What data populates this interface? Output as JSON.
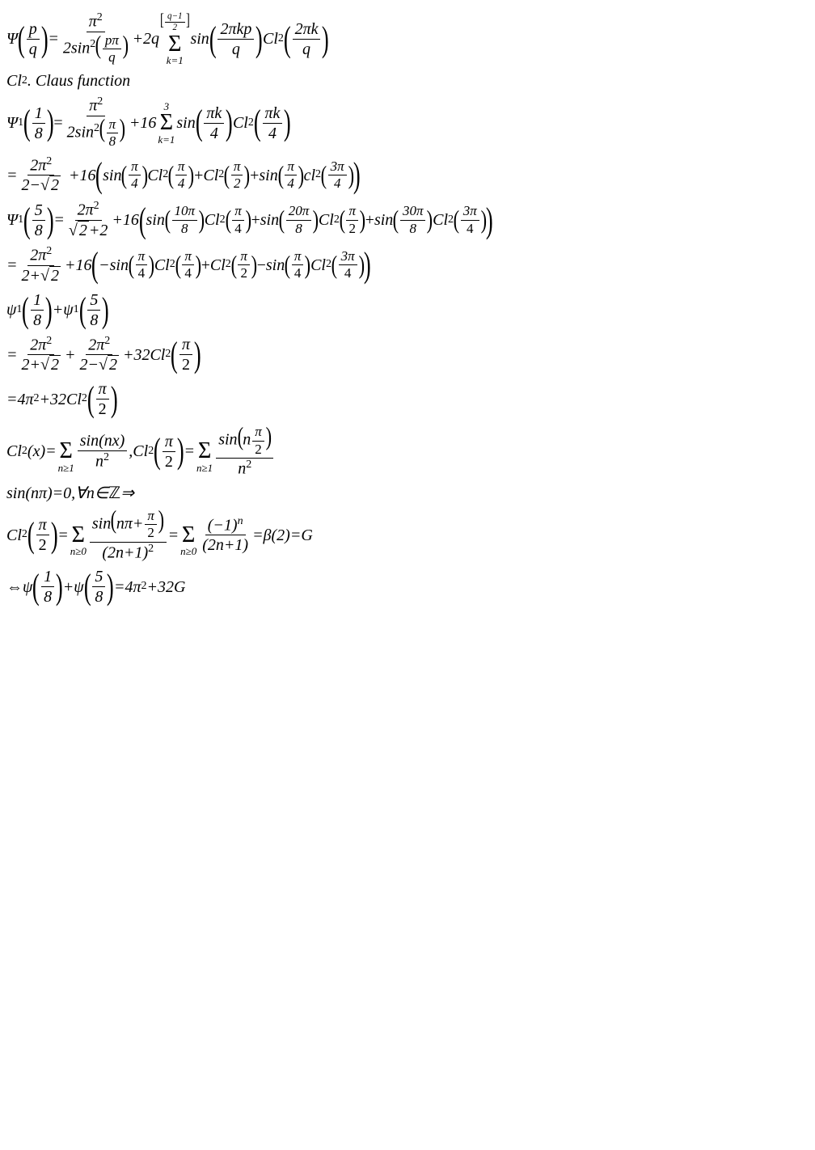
{
  "lines": {
    "l1_psi": "Ψ",
    "l1_p": "p",
    "l1_q": "q",
    "l1_eq": "=",
    "l1_pi2": "π",
    "l1_2sin2": "2sin",
    "l1_ppi": "pπ",
    "l1_plus2q": "+2q",
    "l1_sumtop_num": "q−1",
    "l1_sumtop_den": "2",
    "l1_sumbot": "k=1",
    "l1_sin": "sin",
    "l1_2pikp": "2πkp",
    "l1_Cl2": "Cl",
    "l1_2pik": "2πk",
    "l2": "Cl",
    "l2_sub": "2",
    "l2_rest": ". Claus function",
    "l3_psi1": "Ψ",
    "l3_one": "1",
    "l3_18": "1",
    "l3_8": "8",
    "l3_pi": "π",
    "l3_2sin2": "2sin",
    "l3_pi8": "π",
    "l3_plus16": "+16",
    "l3_sumtop": "3",
    "l3_sumbot": "k=1",
    "l3_sin": "sin",
    "l3_pik": "πk",
    "l3_4": "4",
    "l3_Cl2": "Cl",
    "l4_eq": "=",
    "l4_2pi2": "2π",
    "l4_2msqrt2": "2−",
    "l4_sqrt2": "2",
    "l4_plus16": "+16",
    "l4_sin": "sin",
    "l4_pi4": "π",
    "l4_4": "4",
    "l4_Cl2": "Cl",
    "l4_pi2": "π",
    "l4_2": "2",
    "l4_cl2": "cl",
    "l4_3pi4": "3π",
    "l5_psi1": "Ψ",
    "l5_58": "5",
    "l5_8": "8",
    "l5_eq": "=",
    "l5_2pi2": "2π",
    "l5_sqrt2p2": "2",
    "l5_plus2": "+2",
    "l5_plus16": "+16",
    "l5_sin": "sin",
    "l5_10pi8": "10π",
    "l5_Cl2": "Cl",
    "l5_pi4": "π",
    "l5_20pi8": "20π",
    "l5_pi2": "π",
    "l5_30pi8": "30π",
    "l5_3pi4": "3π",
    "l6_eq": "=",
    "l6_2pi2": "2π",
    "l6_2psqrt2": "2+",
    "l6_sqrt2": "2",
    "l6_plus16": "+16",
    "l6_msin": "−sin",
    "l6_pi4": "π",
    "l6_Cl2": "Cl",
    "l6_pi2": "π",
    "l6_3pi4": "3π",
    "l7_psi1": "ψ",
    "l7_18": "1",
    "l7_8": "8",
    "l7_plus": "+ψ",
    "l7_58": "5",
    "l8_eq": "=",
    "l8_2pi2": "2π",
    "l8_2psqrt2": "2+",
    "l8_sqrt2": "2",
    "l8_plus": "+",
    "l8_2msqrt2": "2−",
    "l8_p32": "+32Cl",
    "l8_pi2": "π",
    "l9_eq": "=4π",
    "l9_p32": "+32Cl",
    "l9_pi2": "π",
    "l10_Cl2": "Cl",
    "l10_x": "(x)=",
    "l10_sinnx": "sin(nx)",
    "l10_n2": "n",
    "l10_comma": ",Cl",
    "l10_pi2": "π",
    "l10_eq2": "=",
    "l10_sinnpi2": "sin",
    "l10_npi2": "n",
    "l11": "sin(nπ)=0,∀n∈",
    "l11_Z": "ℤ",
    "l11_arr": "⇒",
    "l12_Cl2": "Cl",
    "l12_pi2": "π",
    "l12_eq": "=",
    "l12_sin": "sin",
    "l12_npi": "nπ+",
    "l12_2n1": "(2n+1)",
    "l12_eq2": "=",
    "l12_m1n": "(−1)",
    "l12_2n1b": "(2n+1)",
    "l12_beta": "=β(2)=G",
    "l13_iff": "⇔ψ",
    "l13_18": "1",
    "l13_8": "8",
    "l13_plus": "+ψ",
    "l13_58": "5",
    "l13_eq": "=4π",
    "l13_p32G": "+32G"
  },
  "colors": {
    "text": "#000000",
    "bg": "#ffffff"
  },
  "fontsize_pt": 15
}
